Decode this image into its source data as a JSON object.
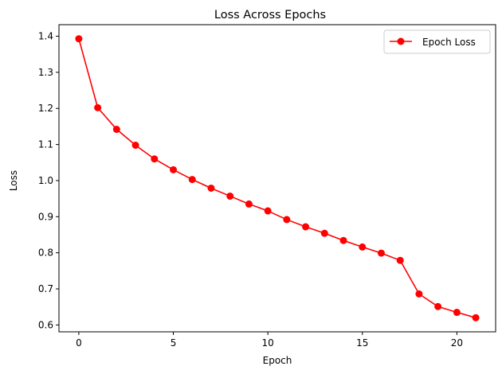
{
  "chart_data": {
    "type": "line",
    "title": "Loss Across Epochs",
    "xlabel": "Epoch",
    "ylabel": "Loss",
    "xlim": [
      -1.05,
      22.05
    ],
    "ylim": [
      0.581,
      1.432
    ],
    "xticks": [
      0,
      5,
      10,
      15,
      20
    ],
    "yticks": [
      0.6,
      0.7,
      0.8,
      0.9,
      1.0,
      1.1,
      1.2,
      1.3,
      1.4
    ],
    "ytick_labels": [
      "0.6",
      "0.7",
      "0.8",
      "0.9",
      "1.0",
      "1.1",
      "1.2",
      "1.3",
      "1.4"
    ],
    "grid": false,
    "legend_position": "top-right",
    "series": [
      {
        "name": "Epoch Loss",
        "color": "#ff0000",
        "marker": "circle",
        "x": [
          0,
          1,
          2,
          3,
          4,
          5,
          6,
          7,
          8,
          9,
          10,
          11,
          12,
          13,
          14,
          15,
          16,
          17,
          18,
          19,
          20,
          21
        ],
        "values": [
          1.393,
          1.202,
          1.142,
          1.098,
          1.06,
          1.03,
          1.003,
          0.979,
          0.957,
          0.935,
          0.916,
          0.892,
          0.872,
          0.854,
          0.834,
          0.816,
          0.799,
          0.779,
          0.686,
          0.651,
          0.635,
          0.62
        ]
      }
    ]
  }
}
